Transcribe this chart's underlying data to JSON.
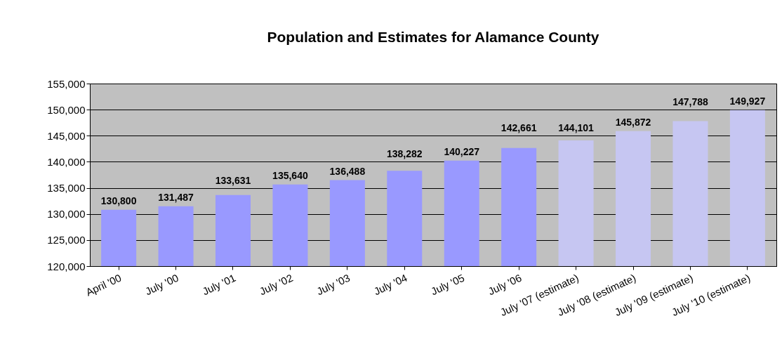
{
  "chart_data": {
    "type": "bar",
    "title": "Population and Estimates for Alamance County",
    "categories": [
      "April '00",
      "July '00",
      "July '01",
      "July '02",
      "July '03",
      "July '04",
      "July '05",
      "July '06",
      "July '07 (estimate)",
      "July '08 (estimate)",
      "July '09 (estimate)",
      "July '10 (estimate)"
    ],
    "values": [
      130800,
      131487,
      133631,
      135640,
      136488,
      138282,
      140227,
      142661,
      144101,
      145872,
      147788,
      149927
    ],
    "value_labels": [
      "130,800",
      "131,487",
      "133,631",
      "135,640",
      "136,488",
      "138,282",
      "140,227",
      "142,661",
      "144,101",
      "145,872",
      "147,788",
      "149,927"
    ],
    "colors": [
      "#9999ff",
      "#9999ff",
      "#9999ff",
      "#9999ff",
      "#9999ff",
      "#9999ff",
      "#9999ff",
      "#9999ff",
      "#c6c6f2",
      "#c6c6f2",
      "#c6c6f2",
      "#c6c6f2"
    ],
    "ylim": [
      120000,
      155000
    ],
    "yticks": [
      {
        "value": 120000,
        "label": "120,000"
      },
      {
        "value": 125000,
        "label": "125,000"
      },
      {
        "value": 130000,
        "label": "130,000"
      },
      {
        "value": 135000,
        "label": "135,000"
      },
      {
        "value": 140000,
        "label": "140,000"
      },
      {
        "value": 145000,
        "label": "145,000"
      },
      {
        "value": 150000,
        "label": "150,000"
      },
      {
        "value": 155000,
        "label": "155,000"
      }
    ],
    "grid": "y"
  }
}
